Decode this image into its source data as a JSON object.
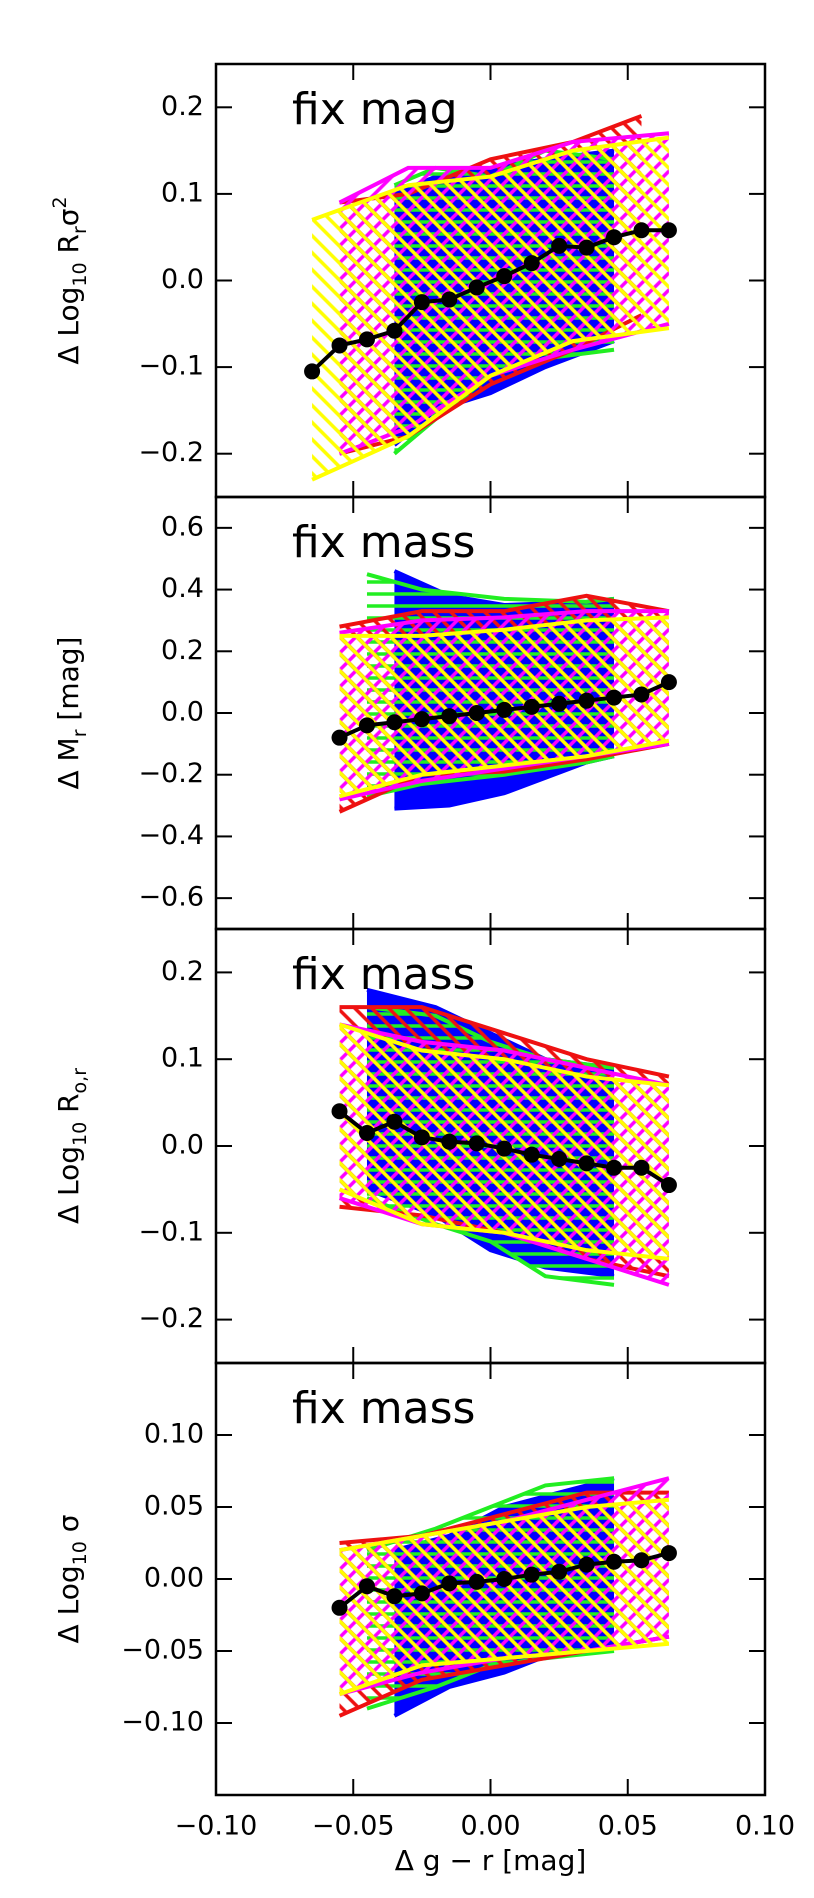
{
  "chart_data": [
    {
      "type": "line",
      "title": "fix mag",
      "ylabel": [
        {
          "text": "Δ Log"
        },
        {
          "sub": "10"
        },
        {
          "text": " R"
        },
        {
          "sub": "r"
        },
        {
          "text": "σ"
        },
        {
          "sup": "2"
        }
      ],
      "ylim": [
        -0.25,
        0.25
      ],
      "yticks": [
        {
          "value": -0.2,
          "label": "−0.2"
        },
        {
          "value": -0.1,
          "label": "−0.1"
        },
        {
          "value": 0,
          "label": "0.0"
        },
        0.1,
        0.2
      ],
      "bands": [
        {
          "color": "#0000ff",
          "x": [
            -0.035,
            -0.02,
            0,
            0.02,
            0.045
          ],
          "upper": [
            0.1,
            0.12,
            0.13,
            0.14,
            0.15
          ],
          "lower": [
            -0.19,
            -0.15,
            -0.13,
            -0.1,
            -0.07
          ]
        },
        {
          "color": "#22ee22",
          "x": [
            -0.035,
            -0.02,
            0,
            0.02,
            0.045
          ],
          "upper": [
            0.11,
            0.13,
            0.12,
            0.15,
            0.14
          ],
          "lower": [
            -0.2,
            -0.16,
            -0.11,
            -0.09,
            -0.08
          ]
        },
        {
          "color": "#ee1111",
          "x": [
            -0.055,
            -0.03,
            0,
            0.03,
            0.055
          ],
          "upper": [
            0.09,
            0.1,
            0.14,
            0.16,
            0.19
          ],
          "lower": [
            -0.2,
            -0.18,
            -0.12,
            -0.08,
            -0.04
          ]
        },
        {
          "color": "#ff00ff",
          "x": [
            -0.055,
            -0.03,
            0,
            0.03,
            0.065
          ],
          "upper": [
            0.09,
            0.13,
            0.13,
            0.16,
            0.17
          ],
          "lower": [
            -0.2,
            -0.17,
            -0.11,
            -0.08,
            -0.05
          ]
        },
        {
          "color": "#ffff00",
          "x": [
            -0.065,
            -0.03,
            0,
            0.03,
            0.065
          ],
          "upper": [
            0.07,
            0.11,
            0.12,
            0.15,
            0.165
          ],
          "lower": [
            -0.23,
            -0.18,
            -0.11,
            -0.07,
            -0.055
          ]
        }
      ],
      "series": [
        {
          "color": "#000000",
          "x": [
            -0.065,
            -0.055,
            -0.045,
            -0.035,
            -0.025,
            -0.015,
            -0.005,
            0.005,
            0.015,
            0.025,
            0.035,
            0.045,
            0.055,
            0.065
          ],
          "values": [
            -0.105,
            -0.075,
            -0.068,
            -0.058,
            -0.025,
            -0.022,
            -0.008,
            0.005,
            0.02,
            0.04,
            0.038,
            0.05,
            0.058,
            0.058
          ]
        }
      ]
    },
    {
      "type": "line",
      "title": "fix mass",
      "ylabel": [
        {
          "text": "Δ M"
        },
        {
          "sub": "r"
        },
        {
          "text": " [mag]"
        }
      ],
      "ylim": [
        -0.7,
        0.7
      ],
      "yticks": [
        {
          "value": -0.6,
          "label": "−0.6"
        },
        {
          "value": -0.4,
          "label": "−0.4"
        },
        {
          "value": -0.2,
          "label": "−0.2"
        },
        {
          "value": 0,
          "label": "0.0"
        },
        0.2,
        0.4,
        0.6
      ],
      "bands": [
        {
          "color": "#0000ff",
          "x": [
            -0.035,
            -0.015,
            0.005,
            0.035,
            0.045
          ],
          "upper": [
            0.46,
            0.38,
            0.35,
            0.36,
            0.37
          ],
          "lower": [
            -0.31,
            -0.3,
            -0.26,
            -0.16,
            -0.14
          ]
        },
        {
          "color": "#22ee22",
          "x": [
            -0.045,
            -0.025,
            0.005,
            0.035,
            0.045
          ],
          "upper": [
            0.45,
            0.4,
            0.37,
            0.36,
            0.37
          ],
          "lower": [
            -0.27,
            -0.23,
            -0.2,
            -0.16,
            -0.14
          ]
        },
        {
          "color": "#ee1111",
          "x": [
            -0.055,
            -0.025,
            0.005,
            0.035,
            0.065
          ],
          "upper": [
            0.28,
            0.33,
            0.33,
            0.38,
            0.33
          ],
          "lower": [
            -0.32,
            -0.2,
            -0.19,
            -0.15,
            -0.1
          ]
        },
        {
          "color": "#ff00ff",
          "x": [
            -0.055,
            -0.025,
            0.005,
            0.035,
            0.065
          ],
          "upper": [
            0.26,
            0.3,
            0.31,
            0.33,
            0.33
          ],
          "lower": [
            -0.28,
            -0.22,
            -0.18,
            -0.14,
            -0.1
          ]
        },
        {
          "color": "#ffff00",
          "x": [
            -0.055,
            -0.025,
            0.005,
            0.035,
            0.065
          ],
          "upper": [
            0.25,
            0.25,
            0.27,
            0.3,
            0.31
          ],
          "lower": [
            -0.27,
            -0.2,
            -0.17,
            -0.14,
            -0.09
          ]
        }
      ],
      "series": [
        {
          "color": "#000000",
          "x": [
            -0.055,
            -0.045,
            -0.035,
            -0.025,
            -0.015,
            -0.005,
            0.005,
            0.015,
            0.025,
            0.035,
            0.045,
            0.055,
            0.065
          ],
          "values": [
            -0.08,
            -0.04,
            -0.03,
            -0.02,
            -0.01,
            0,
            0.01,
            0.02,
            0.03,
            0.04,
            0.05,
            0.06,
            0.1
          ]
        }
      ]
    },
    {
      "type": "line",
      "title": "fix mass",
      "ylabel": [
        {
          "text": "Δ Log"
        },
        {
          "sub": "10"
        },
        {
          "text": " R"
        },
        {
          "sub": "o,r"
        }
      ],
      "ylim": [
        -0.25,
        0.25
      ],
      "yticks": [
        {
          "value": -0.2,
          "label": "−0.2"
        },
        {
          "value": -0.1,
          "label": "−0.1"
        },
        {
          "value": 0,
          "label": "0.0"
        },
        0.1,
        0.2
      ],
      "bands": [
        {
          "color": "#0000ff",
          "x": [
            -0.045,
            -0.02,
            0,
            0.02,
            0.045
          ],
          "upper": [
            0.18,
            0.16,
            0.13,
            0.1,
            0.09
          ],
          "lower": [
            -0.05,
            -0.08,
            -0.12,
            -0.14,
            -0.15
          ]
        },
        {
          "color": "#22ee22",
          "x": [
            -0.045,
            -0.02,
            0,
            0.02,
            0.045
          ],
          "upper": [
            0.16,
            0.15,
            0.12,
            0.1,
            0.09
          ],
          "lower": [
            -0.06,
            -0.09,
            -0.11,
            -0.15,
            -0.16
          ]
        },
        {
          "color": "#ee1111",
          "x": [
            -0.055,
            -0.025,
            0.005,
            0.035,
            0.065
          ],
          "upper": [
            0.16,
            0.16,
            0.13,
            0.1,
            0.08
          ],
          "lower": [
            -0.07,
            -0.08,
            -0.1,
            -0.13,
            -0.15
          ]
        },
        {
          "color": "#ff00ff",
          "x": [
            -0.055,
            -0.025,
            0.005,
            0.035,
            0.065
          ],
          "upper": [
            0.14,
            0.12,
            0.11,
            0.09,
            0.07
          ],
          "lower": [
            -0.06,
            -0.09,
            -0.1,
            -0.13,
            -0.16
          ]
        },
        {
          "color": "#ffff00",
          "x": [
            -0.055,
            -0.025,
            0.005,
            0.035,
            0.065
          ],
          "upper": [
            0.14,
            0.11,
            0.1,
            0.08,
            0.07
          ],
          "lower": [
            -0.05,
            -0.09,
            -0.1,
            -0.12,
            -0.13
          ]
        }
      ],
      "series": [
        {
          "color": "#000000",
          "x": [
            -0.055,
            -0.045,
            -0.035,
            -0.025,
            -0.015,
            -0.005,
            0.005,
            0.015,
            0.025,
            0.035,
            0.045,
            0.055,
            0.065
          ],
          "values": [
            0.04,
            0.015,
            0.028,
            0.01,
            0.005,
            0.003,
            -0.003,
            -0.01,
            -0.015,
            -0.02,
            -0.025,
            -0.025,
            -0.045
          ]
        }
      ]
    },
    {
      "type": "line",
      "title": "fix mass",
      "ylabel": [
        {
          "text": "Δ Log"
        },
        {
          "sub": "10"
        },
        {
          "text": " σ"
        }
      ],
      "ylim": [
        -0.15,
        0.15
      ],
      "yticks": [
        {
          "value": -0.1,
          "label": "−0.10"
        },
        {
          "value": -0.05,
          "label": "−0.05"
        },
        {
          "value": 0,
          "label": "0.00"
        },
        0.05,
        {
          "value": 0.1,
          "label": "0.10"
        }
      ],
      "xlabel": "Δ g − r [mag]",
      "xlim": [
        -0.1,
        0.1
      ],
      "xticks": [
        {
          "value": -0.1,
          "label": "−0.10"
        },
        {
          "value": -0.05,
          "label": "−0.05"
        },
        {
          "value": 0,
          "label": "0.00"
        },
        0.05,
        {
          "value": 0.1,
          "label": "0.10"
        }
      ],
      "bands": [
        {
          "color": "#0000ff",
          "x": [
            -0.035,
            -0.015,
            0.005,
            0.025,
            0.045
          ],
          "upper": [
            0.02,
            0.03,
            0.05,
            0.06,
            0.07
          ],
          "lower": [
            -0.095,
            -0.075,
            -0.065,
            -0.05,
            -0.045
          ]
        },
        {
          "color": "#22ee22",
          "x": [
            -0.045,
            -0.02,
            0,
            0.02,
            0.045
          ],
          "upper": [
            0.02,
            0.035,
            0.05,
            0.065,
            0.07
          ],
          "lower": [
            -0.09,
            -0.075,
            -0.06,
            -0.055,
            -0.05
          ]
        },
        {
          "color": "#ee1111",
          "x": [
            -0.055,
            -0.025,
            0.005,
            0.035,
            0.065
          ],
          "upper": [
            0.025,
            0.03,
            0.045,
            0.06,
            0.06
          ],
          "lower": [
            -0.095,
            -0.07,
            -0.06,
            -0.05,
            -0.04
          ]
        },
        {
          "color": "#ff00ff",
          "x": [
            -0.055,
            -0.025,
            0.005,
            0.035,
            0.065
          ],
          "upper": [
            0.02,
            0.03,
            0.04,
            0.055,
            0.07
          ],
          "lower": [
            -0.08,
            -0.065,
            -0.055,
            -0.05,
            -0.04
          ]
        },
        {
          "color": "#ffff00",
          "x": [
            -0.055,
            -0.025,
            0.005,
            0.035,
            0.065
          ],
          "upper": [
            0.02,
            0.03,
            0.04,
            0.05,
            0.055
          ],
          "lower": [
            -0.08,
            -0.06,
            -0.055,
            -0.05,
            -0.045
          ]
        }
      ],
      "series": [
        {
          "color": "#000000",
          "x": [
            -0.055,
            -0.045,
            -0.035,
            -0.025,
            -0.015,
            -0.005,
            0.005,
            0.015,
            0.025,
            0.035,
            0.045,
            0.055,
            0.065
          ],
          "values": [
            -0.02,
            -0.005,
            -0.012,
            -0.01,
            -0.003,
            -0.002,
            0,
            0.003,
            0.005,
            0.01,
            0.012,
            0.013,
            0.018
          ]
        }
      ]
    }
  ]
}
